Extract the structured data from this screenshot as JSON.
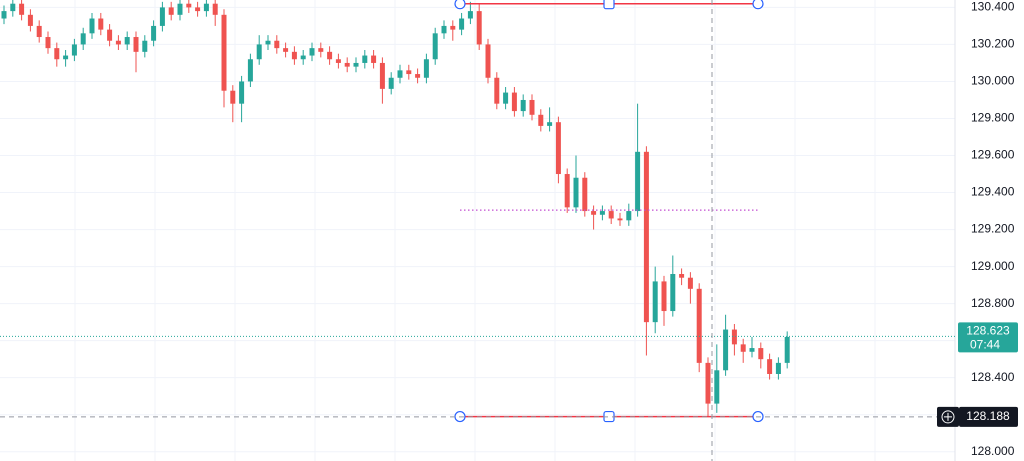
{
  "chart_data": {
    "type": "candlestick",
    "ylim": [
      127.95,
      130.44
    ],
    "yticks": [
      {
        "value": 128.0,
        "label": "128.000"
      },
      {
        "value": 128.2,
        "label": "128.200"
      },
      {
        "value": 128.4,
        "label": "128.400"
      },
      {
        "value": 128.6,
        "label": "128.600"
      },
      {
        "value": 128.8,
        "label": "128.800"
      },
      {
        "value": 129.0,
        "label": "129.000"
      },
      {
        "value": 129.2,
        "label": "129.200"
      },
      {
        "value": 129.4,
        "label": "129.400"
      },
      {
        "value": 129.6,
        "label": "129.600"
      },
      {
        "value": 129.8,
        "label": "129.800"
      },
      {
        "value": 130.0,
        "label": "130.000"
      },
      {
        "value": 130.2,
        "label": "130.200"
      },
      {
        "value": 130.4,
        "label": "130.400"
      }
    ],
    "grid": true,
    "up_color": "#26a69a",
    "down_color": "#ef5350",
    "open": [
      130.34,
      130.38,
      130.42,
      130.36,
      130.3,
      130.24,
      130.18,
      130.12,
      130.14,
      130.2,
      130.26,
      130.34,
      130.28,
      130.22,
      130.2,
      130.24,
      130.16,
      130.22,
      130.3,
      130.4,
      130.36,
      130.42,
      130.4,
      130.38,
      130.42,
      130.36,
      129.95,
      129.88,
      130.0,
      130.12,
      130.2,
      130.22,
      130.18,
      130.16,
      130.12,
      130.14,
      130.18,
      130.16,
      130.12,
      130.1,
      130.08,
      130.1,
      130.14,
      130.1,
      129.96,
      130.02,
      130.06,
      130.04,
      130.02,
      130.12,
      130.26,
      130.3,
      130.28,
      130.34,
      130.38,
      130.2,
      130.02,
      129.88,
      129.94,
      129.84,
      129.9,
      129.82,
      129.76,
      129.78,
      129.5,
      129.32,
      129.48,
      129.3,
      129.28,
      129.3,
      129.26,
      129.25,
      129.3,
      129.62,
      128.7,
      128.92,
      128.76,
      128.96,
      128.94,
      128.88,
      128.48,
      128.26,
      128.44,
      128.66,
      128.58,
      128.54,
      128.56,
      128.5,
      128.42,
      128.48
    ],
    "close": [
      130.38,
      130.42,
      130.36,
      130.3,
      130.24,
      130.18,
      130.12,
      130.14,
      130.2,
      130.26,
      130.34,
      130.28,
      130.22,
      130.2,
      130.24,
      130.16,
      130.22,
      130.3,
      130.4,
      130.36,
      130.42,
      130.4,
      130.38,
      130.42,
      130.36,
      129.95,
      129.88,
      130.0,
      130.12,
      130.2,
      130.22,
      130.18,
      130.16,
      130.12,
      130.14,
      130.18,
      130.16,
      130.12,
      130.1,
      130.08,
      130.1,
      130.14,
      130.1,
      129.96,
      130.02,
      130.06,
      130.04,
      130.02,
      130.12,
      130.26,
      130.3,
      130.28,
      130.34,
      130.38,
      130.2,
      130.02,
      129.88,
      129.94,
      129.84,
      129.9,
      129.82,
      129.76,
      129.78,
      129.5,
      129.32,
      129.48,
      129.3,
      129.28,
      129.3,
      129.26,
      129.25,
      129.3,
      129.62,
      128.7,
      128.92,
      128.76,
      128.96,
      128.94,
      128.88,
      128.48,
      128.26,
      128.44,
      128.66,
      128.58,
      128.54,
      128.56,
      128.5,
      128.42,
      128.48,
      128.62
    ],
    "high": [
      130.41,
      130.44,
      130.44,
      130.39,
      130.33,
      130.27,
      130.21,
      130.17,
      130.23,
      130.29,
      130.37,
      130.37,
      130.31,
      130.25,
      130.27,
      130.27,
      130.25,
      130.33,
      130.43,
      130.43,
      130.44,
      130.44,
      130.43,
      130.44,
      130.44,
      130.39,
      129.98,
      130.03,
      130.15,
      130.25,
      130.25,
      130.25,
      130.21,
      130.19,
      130.17,
      130.21,
      130.21,
      130.19,
      130.15,
      130.13,
      130.13,
      130.17,
      130.17,
      130.13,
      130.05,
      130.09,
      130.09,
      130.07,
      130.15,
      130.29,
      130.33,
      130.33,
      130.37,
      130.43,
      130.42,
      130.23,
      130.05,
      129.97,
      129.97,
      129.93,
      129.93,
      129.85,
      129.86,
      129.81,
      129.53,
      129.6,
      129.51,
      129.33,
      129.33,
      129.33,
      129.29,
      129.34,
      129.88,
      129.65,
      129.0,
      128.95,
      129.06,
      128.99,
      128.97,
      128.91,
      128.51,
      128.58,
      128.74,
      128.69,
      128.61,
      128.62,
      128.59,
      128.53,
      128.51,
      128.65
    ],
    "low": [
      130.31,
      130.35,
      130.33,
      130.27,
      130.21,
      130.15,
      130.08,
      130.08,
      130.11,
      130.17,
      130.23,
      130.25,
      130.19,
      130.17,
      130.17,
      130.05,
      130.13,
      130.19,
      130.27,
      130.33,
      130.33,
      130.37,
      130.35,
      130.35,
      130.3,
      129.86,
      129.78,
      129.78,
      129.97,
      130.09,
      130.17,
      130.15,
      130.13,
      130.09,
      130.09,
      130.11,
      130.13,
      130.09,
      130.07,
      130.05,
      130.05,
      130.07,
      130.07,
      129.88,
      129.93,
      129.99,
      130.01,
      129.99,
      129.99,
      130.09,
      130.23,
      130.22,
      130.25,
      130.31,
      130.17,
      129.99,
      129.85,
      129.85,
      129.81,
      129.81,
      129.79,
      129.73,
      129.73,
      129.45,
      129.29,
      129.29,
      129.27,
      129.2,
      129.25,
      129.23,
      129.22,
      129.22,
      129.27,
      128.52,
      128.64,
      128.68,
      128.73,
      128.9,
      128.8,
      128.43,
      128.19,
      128.21,
      128.41,
      128.52,
      128.48,
      128.51,
      128.45,
      128.39,
      128.39,
      128.45
    ],
    "range_top": 130.42,
    "range_mid": 129.305,
    "range_bottom": 128.19,
    "last_price": 128.623,
    "last_price_label": "128.623",
    "countdown": "07:44",
    "crosshair_price": 128.188,
    "crosshair_label": "128.188"
  }
}
